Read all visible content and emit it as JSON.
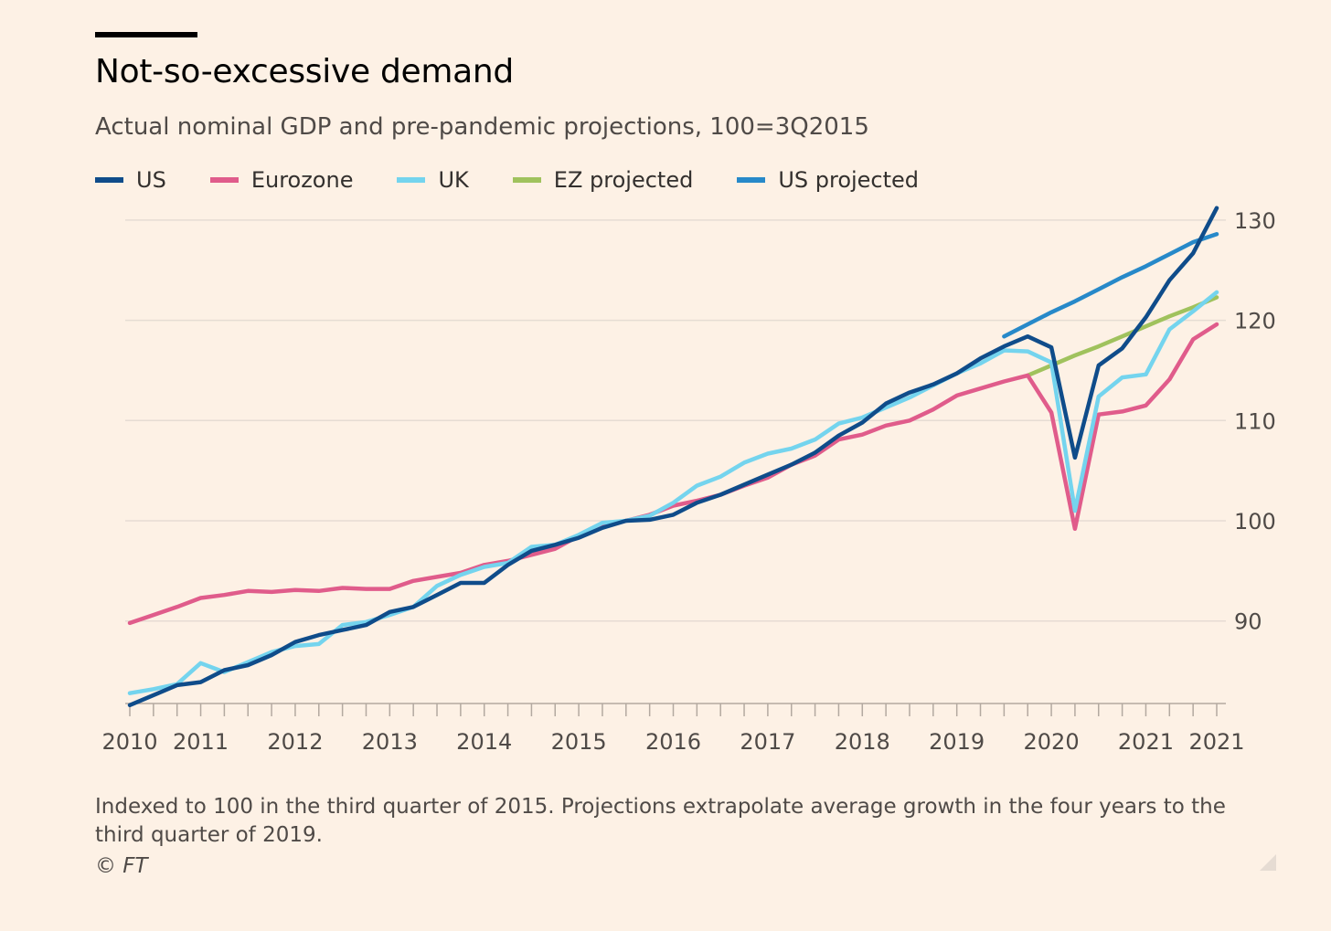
{
  "title": "Not-so-excessive demand",
  "subtitle": "Actual nominal GDP and pre-pandemic projections, 100=3Q2015",
  "footnote": "Indexed to 100 in the third quarter of 2015. Projections extrapolate average growth in the four years to the third quarter of 2019.",
  "source": "© FT",
  "chart_data": {
    "type": "line",
    "xlabel": "",
    "ylabel": "",
    "ylim": [
      81.5,
      131.5
    ],
    "y_ticks": [
      90,
      100,
      110,
      120,
      130
    ],
    "y_axis_side": "right",
    "grid": true,
    "legend_position": "top-left",
    "x_tick_labels": [
      {
        "label": "2010",
        "x": 2010.0
      },
      {
        "label": "2011",
        "x": 2010.75
      },
      {
        "label": "2012",
        "x": 2011.75
      },
      {
        "label": "2013",
        "x": 2012.75
      },
      {
        "label": "2014",
        "x": 2013.75
      },
      {
        "label": "2015",
        "x": 2014.75
      },
      {
        "label": "2016",
        "x": 2015.75
      },
      {
        "label": "2017",
        "x": 2016.75
      },
      {
        "label": "2018",
        "x": 2017.75
      },
      {
        "label": "2019",
        "x": 2018.75
      },
      {
        "label": "2020",
        "x": 2019.75
      },
      {
        "label": "2021",
        "x": 2020.75
      },
      {
        "label": "2021",
        "x": 2021.5
      }
    ],
    "x_minor_ticks": [
      2010.0,
      2010.25,
      2010.5,
      2010.75,
      2011.0,
      2011.25,
      2011.5,
      2011.75,
      2012.0,
      2012.25,
      2012.5,
      2012.75,
      2013.0,
      2013.25,
      2013.5,
      2013.75,
      2014.0,
      2014.25,
      2014.5,
      2014.75,
      2015.0,
      2015.25,
      2015.5,
      2015.75,
      2016.0,
      2016.25,
      2016.5,
      2016.75,
      2017.0,
      2017.25,
      2017.5,
      2017.75,
      2018.0,
      2018.25,
      2018.5,
      2018.75,
      2019.0,
      2019.25,
      2019.5,
      2019.75,
      2020.0,
      2020.25,
      2020.5,
      2020.75,
      2021.0,
      2021.25,
      2021.5
    ],
    "series": [
      {
        "name": "US",
        "color": "#0f4c8a",
        "x": [
          2010.0,
          2010.25,
          2010.5,
          2010.75,
          2011.0,
          2011.25,
          2011.5,
          2011.75,
          2012.0,
          2012.25,
          2012.5,
          2012.75,
          2013.0,
          2013.25,
          2013.5,
          2013.75,
          2014.0,
          2014.25,
          2014.5,
          2014.75,
          2015.0,
          2015.25,
          2015.5,
          2015.75,
          2016.0,
          2016.25,
          2016.5,
          2016.75,
          2017.0,
          2017.25,
          2017.5,
          2017.75,
          2018.0,
          2018.25,
          2018.5,
          2018.75,
          2019.0,
          2019.25,
          2019.5,
          2019.75,
          2020.0,
          2020.25,
          2020.5,
          2020.75,
          2021.0,
          2021.25,
          2021.5
        ],
        "y": [
          81.6,
          82.6,
          83.6,
          83.9,
          85.1,
          85.6,
          86.6,
          87.9,
          88.6,
          89.1,
          89.6,
          90.9,
          91.4,
          92.6,
          93.8,
          93.8,
          95.6,
          97.0,
          97.6,
          98.3,
          99.3,
          100.0,
          100.1,
          100.6,
          101.8,
          102.6,
          103.6,
          104.6,
          105.6,
          106.8,
          108.5,
          109.8,
          111.7,
          112.8,
          113.6,
          114.7,
          116.2,
          117.4,
          118.4,
          117.3,
          106.3,
          115.5,
          117.2,
          120.3,
          124.0,
          126.7,
          131.2
        ]
      },
      {
        "name": "Eurozone",
        "color": "#e05c8b",
        "x": [
          2010.0,
          2010.25,
          2010.5,
          2010.75,
          2011.0,
          2011.25,
          2011.5,
          2011.75,
          2012.0,
          2012.25,
          2012.5,
          2012.75,
          2013.0,
          2013.25,
          2013.5,
          2013.75,
          2014.0,
          2014.25,
          2014.5,
          2014.75,
          2015.0,
          2015.25,
          2015.5,
          2015.75,
          2016.0,
          2016.25,
          2016.5,
          2016.75,
          2017.0,
          2017.25,
          2017.5,
          2017.75,
          2018.0,
          2018.25,
          2018.5,
          2018.75,
          2019.0,
          2019.25,
          2019.5,
          2019.75,
          2020.0,
          2020.25,
          2020.5,
          2020.75,
          2021.0,
          2021.25,
          2021.5
        ],
        "y": [
          89.8,
          90.6,
          91.4,
          92.3,
          92.6,
          93.0,
          92.9,
          93.1,
          93.0,
          93.3,
          93.2,
          93.2,
          94.0,
          94.4,
          94.8,
          95.6,
          96.0,
          96.6,
          97.2,
          98.5,
          99.4,
          100.0,
          100.6,
          101.5,
          102.0,
          102.6,
          103.5,
          104.3,
          105.6,
          106.5,
          108.1,
          108.6,
          109.5,
          110.0,
          111.1,
          112.5,
          113.2,
          113.9,
          114.5,
          110.8,
          99.2,
          110.6,
          110.9,
          111.5,
          114.1,
          118.1,
          119.6
        ]
      },
      {
        "name": "UK",
        "color": "#74d4ee",
        "x": [
          2010.0,
          2010.25,
          2010.5,
          2010.75,
          2011.0,
          2011.25,
          2011.5,
          2011.75,
          2012.0,
          2012.25,
          2012.5,
          2012.75,
          2013.0,
          2013.25,
          2013.5,
          2013.75,
          2014.0,
          2014.25,
          2014.5,
          2014.75,
          2015.0,
          2015.25,
          2015.5,
          2015.75,
          2016.0,
          2016.25,
          2016.5,
          2016.75,
          2017.0,
          2017.25,
          2017.5,
          2017.75,
          2018.0,
          2018.25,
          2018.5,
          2018.75,
          2019.0,
          2019.25,
          2019.5,
          2019.75,
          2020.0,
          2020.25,
          2020.5,
          2020.75,
          2021.0,
          2021.25,
          2021.5
        ],
        "y": [
          82.8,
          83.2,
          83.7,
          85.8,
          84.9,
          85.9,
          86.9,
          87.5,
          87.7,
          89.6,
          89.9,
          90.6,
          91.4,
          93.5,
          94.6,
          95.4,
          95.8,
          97.4,
          97.6,
          98.6,
          99.8,
          100.0,
          100.5,
          101.8,
          103.5,
          104.4,
          105.8,
          106.7,
          107.2,
          108.1,
          109.7,
          110.3,
          111.3,
          112.3,
          113.5,
          114.7,
          115.7,
          117.0,
          116.9,
          115.8,
          101.0,
          112.4,
          114.3,
          114.6,
          119.1,
          120.9,
          122.8
        ]
      },
      {
        "name": "EZ projected",
        "color": "#a0c25d",
        "x": [
          2019.5,
          2019.75,
          2020.0,
          2020.25,
          2020.5,
          2020.75,
          2021.0,
          2021.25,
          2021.5
        ],
        "y": [
          114.5,
          115.5,
          116.5,
          117.4,
          118.4,
          119.4,
          120.4,
          121.3,
          122.3
        ]
      },
      {
        "name": "US projected",
        "color": "#2789c9",
        "x": [
          2019.25,
          2019.5,
          2019.75,
          2020.0,
          2020.25,
          2020.5,
          2020.75,
          2021.0,
          2021.25,
          2021.5
        ],
        "y": [
          118.4,
          119.6,
          120.8,
          121.9,
          123.1,
          124.3,
          125.4,
          126.6,
          127.8,
          128.6
        ]
      }
    ]
  }
}
